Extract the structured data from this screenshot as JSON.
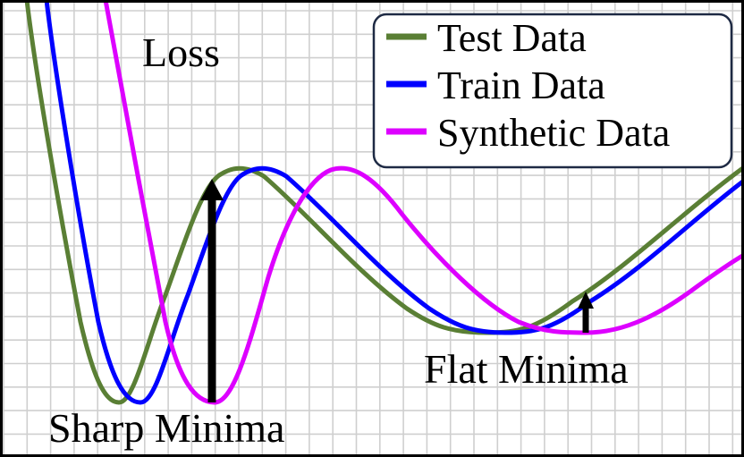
{
  "chart_data": {
    "type": "line",
    "title": "Loss",
    "xlabel": "",
    "ylabel": "",
    "legend_position": "top-right",
    "grid": true,
    "series": [
      {
        "name": "Test Data",
        "color": "#5a7f35"
      },
      {
        "name": "Train Data",
        "color": "#0000ff"
      },
      {
        "name": "Synthetic Data",
        "color": "#dd00ff"
      }
    ],
    "annotations": {
      "sharp_minima": "Sharp Minima",
      "flat_minima": "Flat Minima"
    }
  }
}
